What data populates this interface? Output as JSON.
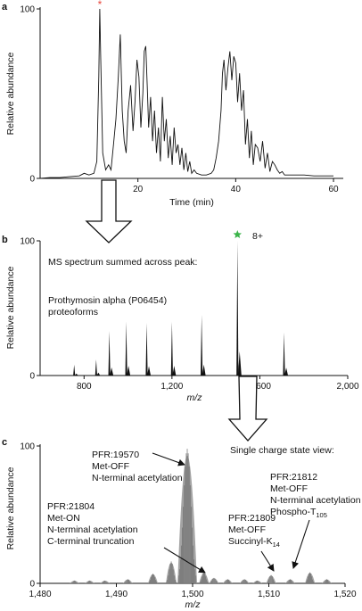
{
  "panels": [
    {
      "letter": "a",
      "chart_data": {
        "type": "line",
        "xlabel": "Time (min)",
        "ylabel": "Relative abundance",
        "xlim": [
          0,
          62
        ],
        "ylim": [
          0,
          100
        ],
        "xticks": [
          "20",
          "40",
          "60"
        ],
        "xtick_values": [
          20,
          40,
          60
        ],
        "yticks": [
          "0",
          "100"
        ],
        "ytick_values": [
          0,
          100
        ],
        "marker": {
          "symbol": "*",
          "color": "#e8463c",
          "x": 12.2
        },
        "series": [
          {
            "x": [
              0,
              2,
              4,
              6,
              8,
              9,
              10,
              11,
              11.6,
              12.0,
              12.2,
              12.4,
              12.8,
              13.4,
              14,
              14.5,
              15,
              15.5,
              16,
              16.4,
              16.8,
              17.2,
              17.6,
              18,
              18.5,
              19,
              19.4,
              19.8,
              20.2,
              20.6,
              21,
              21.3,
              21.6,
              21.9,
              22.2,
              22.6,
              23,
              23.4,
              23.8,
              24.2,
              24.6,
              25,
              25.4,
              25.8,
              26.2,
              26.6,
              27,
              27.4,
              27.8,
              28.2,
              28.6,
              29,
              29.4,
              29.8,
              30.2,
              30.6,
              31,
              31.5,
              32,
              33,
              34,
              35,
              35.5,
              36,
              36.5,
              37,
              37.3,
              37.6,
              38,
              38.4,
              38.8,
              39.2,
              39.6,
              40,
              40.4,
              40.8,
              41.2,
              41.6,
              42,
              42.4,
              42.8,
              43.2,
              43.6,
              44,
              44.5,
              45,
              45.5,
              46,
              46.5,
              47,
              47.5,
              48,
              48.5,
              49,
              49.5,
              50,
              51,
              52,
              54,
              56,
              58,
              60
            ],
            "y": [
              0,
              0.5,
              0.5,
              1,
              1.5,
              3,
              2,
              3,
              10,
              60,
              100,
              70,
              15,
              5,
              8,
              5,
              20,
              35,
              60,
              85,
              40,
              22,
              15,
              40,
              55,
              28,
              45,
              70,
              60,
              30,
              50,
              75,
              78,
              55,
              30,
              48,
              22,
              40,
              15,
              30,
              10,
              48,
              22,
              35,
              12,
              25,
              8,
              30,
              15,
              20,
              8,
              18,
              5,
              15,
              4,
              10,
              3,
              5,
              3,
              2,
              2,
              3,
              5,
              12,
              22,
              40,
              62,
              70,
              52,
              65,
              75,
              58,
              72,
              68,
              45,
              62,
              40,
              52,
              20,
              35,
              12,
              28,
              8,
              20,
              18,
              10,
              22,
              6,
              15,
              4,
              10,
              8,
              5,
              3,
              4,
              2,
              2,
              2,
              2,
              1.5,
              1.5,
              1.5
            ]
          }
        ]
      }
    },
    {
      "letter": "b",
      "annotations": {
        "header": "MS spectrum summed across peak:",
        "protein_line1": "Prothymosin alpha (P06454)",
        "protein_line2": "proteoforms",
        "charge": "8+",
        "charge_marker_color": "#3bb44a"
      },
      "chart_data": {
        "type": "bar",
        "xlabel": "m/z",
        "ylabel": "Relative abundance",
        "xlim": [
          600,
          2000
        ],
        "ylim": [
          0,
          100
        ],
        "xticks": [
          "800",
          "1,200",
          "1,600",
          "2,000"
        ],
        "xtick_values": [
          800,
          1200,
          1600,
          2000
        ],
        "yticks": [
          "0",
          "100"
        ],
        "ytick_values": [
          0,
          100
        ],
        "series": [
          {
            "x": [
              755,
              855,
              915,
              992,
              1085,
              1200,
              1335,
              1498,
              1710
            ],
            "y": [
              8,
              12,
              33,
              40,
              39,
              40,
              45,
              100,
              32
            ]
          }
        ]
      }
    },
    {
      "letter": "c",
      "annotations": {
        "header": "Single charge state view:",
        "pfr_19570": [
          "PFR:19570",
          "Met-OFF",
          "N-terminal acetylation"
        ],
        "pfr_21804": [
          "PFR:21804",
          "Met-ON",
          "N-terminal acetylation",
          "C-terminal truncation"
        ],
        "pfr_21809": [
          "PFR:21809",
          "Met-OFF",
          "Succinyl-K"
        ],
        "pfr_21809_sub": "14",
        "pfr_21812": [
          "PFR:21812",
          "Met-OFF",
          "N-terminal acetylation",
          "Phospho-T"
        ],
        "pfr_21812_sub": "105"
      },
      "chart_data": {
        "type": "bar",
        "xlabel": "m/z",
        "ylabel": "Relative abundance",
        "xlim": [
          1480,
          1520
        ],
        "ylim": [
          0,
          100
        ],
        "xticks": [
          "1,480",
          "1,490",
          "1,500",
          "1,510",
          "1,520"
        ],
        "xtick_values": [
          1480,
          1490,
          1500,
          1510,
          1520
        ],
        "yticks": [
          "0",
          "100"
        ],
        "ytick_values": [
          0,
          100
        ],
        "series": [
          {
            "name": "",
            "x": [
              1484.5,
              1486.5,
              1488.5,
              1491.5,
              1494.8,
              1497.2,
              1499.3,
              1501.5,
              1502.8,
              1504.6,
              1506.8,
              1508.5,
              1510.3,
              1512.8,
              1515.4,
              1517.6
            ],
            "y": [
              2,
              2,
              2,
              3,
              7,
              16,
              98,
              8,
              4,
              3,
              3,
              2,
              6,
              3,
              8,
              3
            ]
          }
        ]
      }
    }
  ]
}
